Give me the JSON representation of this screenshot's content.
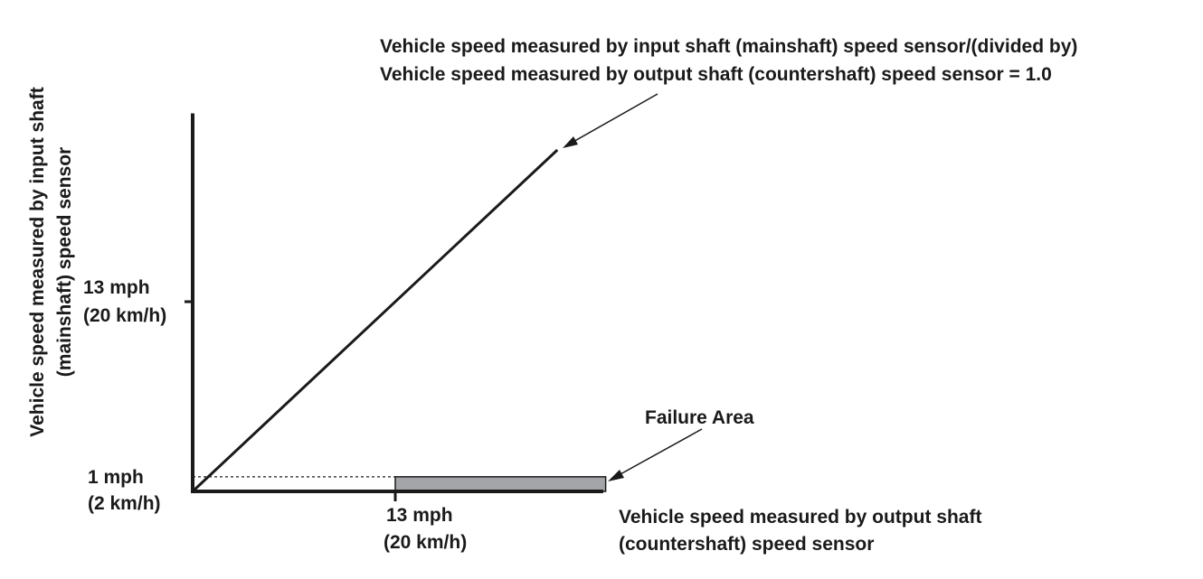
{
  "chart_data": {
    "type": "line",
    "title": "",
    "xlabel_lines": [
      "Vehicle speed measured by output shaft",
      "(countershaft) speed sensor"
    ],
    "ylabel_lines": [
      "Vehicle speed measured by input shaft",
      "(mainshaft) speed sensor"
    ],
    "x_ticks": [
      {
        "value": 13,
        "lines": [
          "13 mph",
          "(20 km/h)"
        ]
      }
    ],
    "y_ticks": [
      {
        "value": 13,
        "lines": [
          "13 mph",
          "(20 km/h)"
        ]
      },
      {
        "value": 1,
        "lines": [
          "1 mph",
          "(2 km/h)"
        ]
      }
    ],
    "xlim": [
      0,
      26.4
    ],
    "ylim": [
      0,
      26.4
    ],
    "series": [
      {
        "name": "",
        "x": [
          0,
          23.4
        ],
        "y": [
          0,
          23.4
        ]
      }
    ],
    "threshold": {
      "y": 1,
      "x_from": 0,
      "x_to": 13,
      "style": "dashed"
    },
    "failure_area": {
      "x_from": 13,
      "x_to": 26.5,
      "y_from": 0,
      "y_to": 1,
      "color": "#a3a5a8"
    },
    "annotations": [
      {
        "id": "ratio",
        "lines": [
          "Vehicle speed measured by input shaft (mainshaft) speed sensor/(divided by)",
          "Vehicle speed measured by output shaft (countershaft) speed sensor = 1.0"
        ]
      },
      {
        "id": "failure",
        "lines": [
          "Failure Area"
        ]
      }
    ],
    "grid": false,
    "legend": "none"
  }
}
